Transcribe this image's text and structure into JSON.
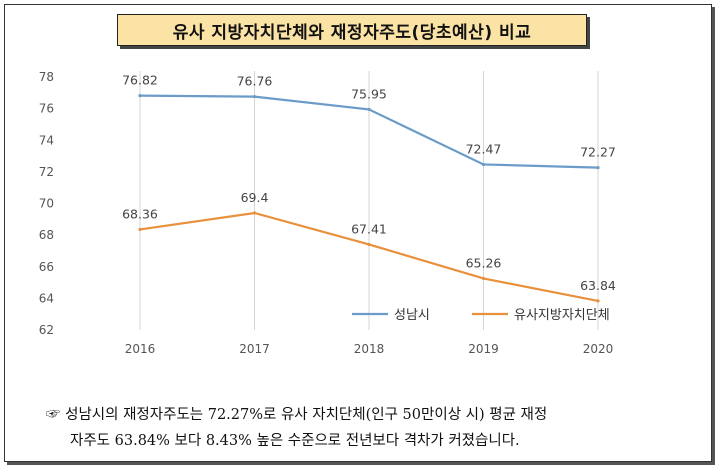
{
  "title": "유사 지방자치단체와 재정자주도(당초예산) 비교",
  "chart_data": {
    "type": "line",
    "categories": [
      "2016",
      "2017",
      "2018",
      "2019",
      "2020"
    ],
    "ylim": [
      62,
      78
    ],
    "yticks": [
      "62",
      "64",
      "66",
      "68",
      "70",
      "72",
      "74",
      "76",
      "78"
    ],
    "grid": "vertical",
    "legend_position": "bottom-right",
    "series": [
      {
        "name": "성남시",
        "color": "#6a9bc9",
        "values": [
          76.82,
          76.76,
          75.95,
          72.47,
          72.27
        ],
        "labels": [
          "76.82",
          "76.76",
          "75.95",
          "72.47",
          "72.27"
        ]
      },
      {
        "name": "유사지방자치단체",
        "color": "#e8903c",
        "values": [
          68.36,
          69.4,
          67.41,
          65.26,
          63.84
        ],
        "labels": [
          "68.36",
          "69.4",
          "67.41",
          "65.26",
          "63.84"
        ]
      }
    ]
  },
  "note": {
    "symbol": "☞",
    "line1": "성남시의 재정자주도는 72.27%로 유사 자치단체(인구 50만이상 시) 평균 재정",
    "line2": "자주도 63.84% 보다 8.43% 높은 수준으로 전년보다 격차가 커졌습니다."
  }
}
